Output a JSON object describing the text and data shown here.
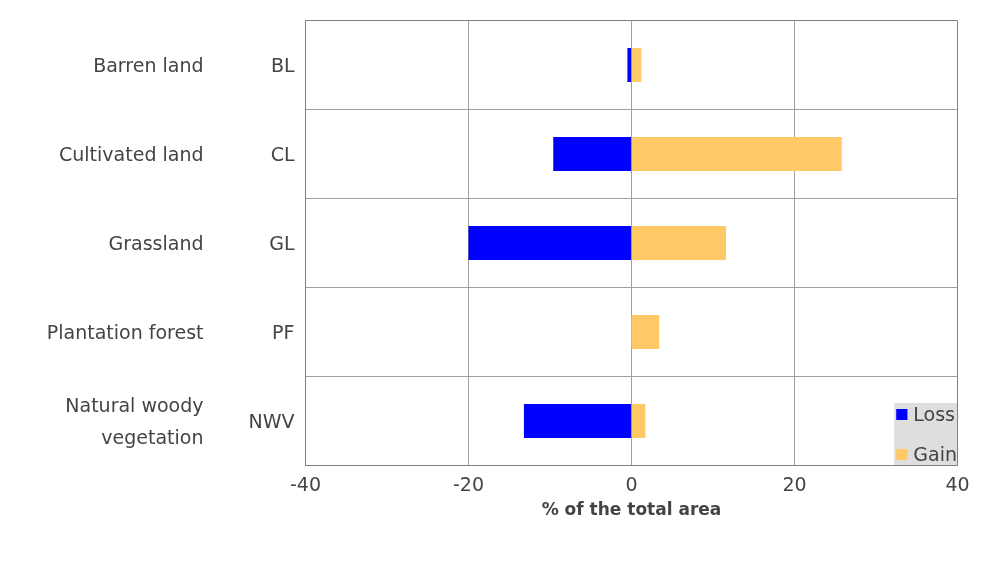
{
  "chart_data": {
    "type": "bar",
    "orientation": "horizontal",
    "stacked": true,
    "categories": [
      "BL",
      "CL",
      "GL",
      "PF",
      "NWV"
    ],
    "series": [
      {
        "name": "Loss",
        "color": "#0000ff",
        "values": [
          -0.5,
          -9.6,
          -20,
          0,
          -13.2
        ]
      },
      {
        "name": "Gain",
        "color": "#ffc966",
        "values": [
          1.2,
          25.8,
          11.6,
          3.4,
          1.7
        ]
      }
    ],
    "xlabel": "% of the total area",
    "xlim": [
      -40,
      40
    ],
    "xticks": [
      -40,
      -20,
      0,
      20,
      40
    ],
    "grid": true,
    "legend": "bottom right",
    "annotations": [
      "Barren land",
      "Cultivated land",
      "Grassland",
      "Plantation forest",
      "Natural woody\nvegetation"
    ]
  }
}
